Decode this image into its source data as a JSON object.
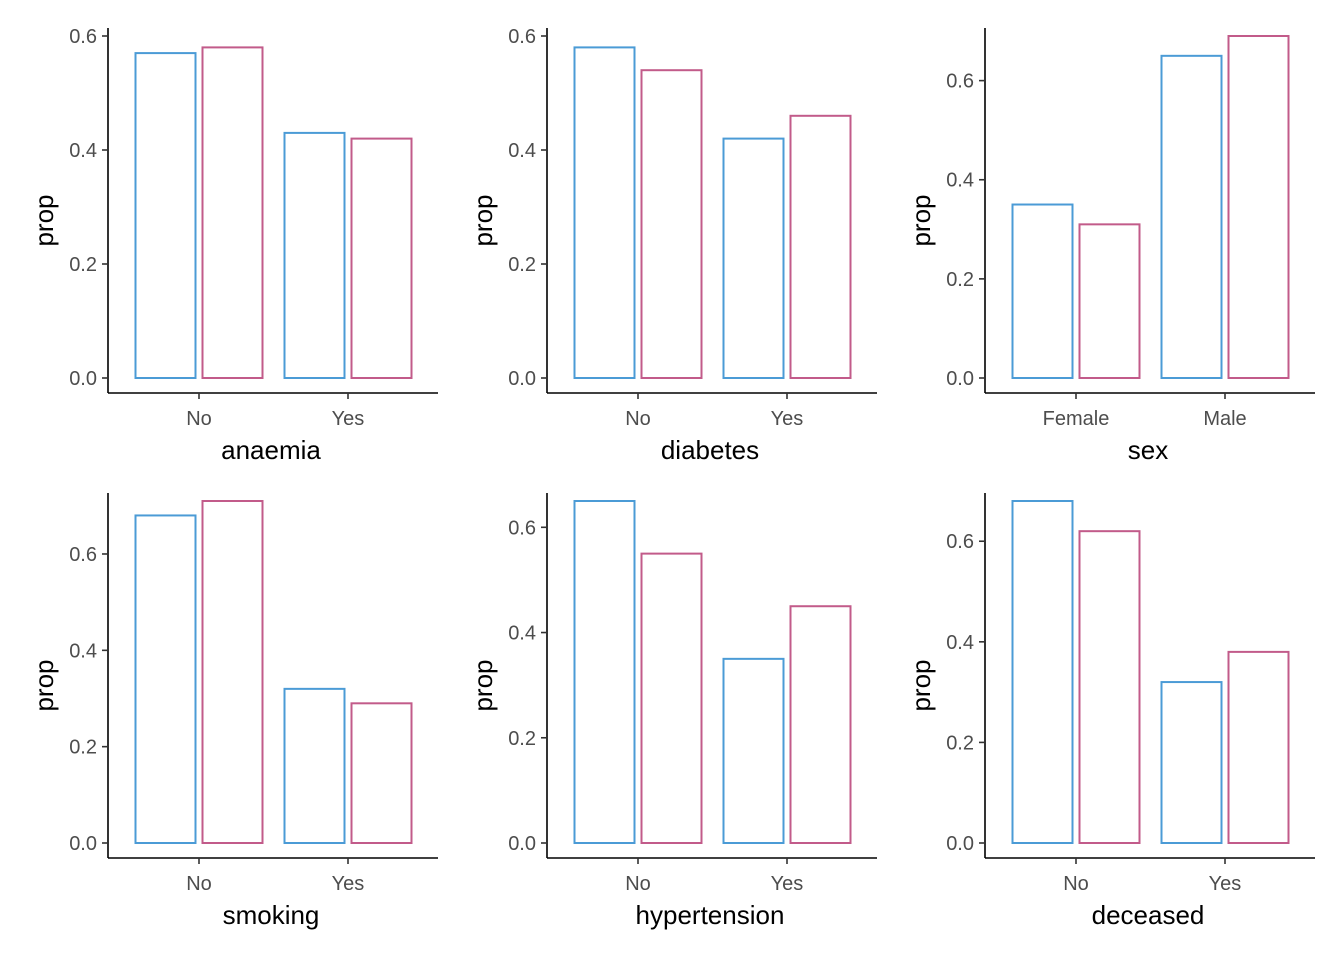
{
  "colors": {
    "series_1": "#4b9bd6",
    "series_2": "#c25b8a"
  },
  "chart_data": [
    {
      "type": "bar",
      "xlabel": "anaemia",
      "ylabel": "prop",
      "categories": [
        "No",
        "Yes"
      ],
      "series": [
        {
          "values": [
            0.57,
            0.43
          ]
        },
        {
          "values": [
            0.58,
            0.42
          ]
        }
      ],
      "ylim": [
        0,
        0.6
      ],
      "yticks": [
        0.0,
        0.2,
        0.4,
        0.6
      ],
      "ytick_labels": [
        "0.0",
        "0.2",
        "0.4",
        "0.6"
      ],
      "grid": false,
      "legend": "none"
    },
    {
      "type": "bar",
      "xlabel": "diabetes",
      "ylabel": "prop",
      "categories": [
        "No",
        "Yes"
      ],
      "series": [
        {
          "values": [
            0.58,
            0.42
          ]
        },
        {
          "values": [
            0.54,
            0.46
          ]
        }
      ],
      "ylim": [
        0,
        0.6
      ],
      "yticks": [
        0.0,
        0.2,
        0.4,
        0.6
      ],
      "ytick_labels": [
        "0.0",
        "0.2",
        "0.4",
        "0.6"
      ],
      "grid": false,
      "legend": "none"
    },
    {
      "type": "bar",
      "xlabel": "sex",
      "ylabel": "prop",
      "categories": [
        "Female",
        "Male"
      ],
      "series": [
        {
          "values": [
            0.35,
            0.65
          ]
        },
        {
          "values": [
            0.31,
            0.69
          ]
        }
      ],
      "ylim": [
        0,
        0.69
      ],
      "yticks": [
        0.0,
        0.2,
        0.4,
        0.6
      ],
      "ytick_labels": [
        "0.0",
        "0.2",
        "0.4",
        "0.6"
      ],
      "grid": false,
      "legend": "none"
    },
    {
      "type": "bar",
      "xlabel": "smoking",
      "ylabel": "prop",
      "categories": [
        "No",
        "Yes"
      ],
      "series": [
        {
          "values": [
            0.68,
            0.32
          ]
        },
        {
          "values": [
            0.71,
            0.29
          ]
        }
      ],
      "ylim": [
        0,
        0.71
      ],
      "yticks": [
        0.0,
        0.2,
        0.4,
        0.6
      ],
      "ytick_labels": [
        "0.0",
        "0.2",
        "0.4",
        "0.6"
      ],
      "grid": false,
      "legend": "none"
    },
    {
      "type": "bar",
      "xlabel": "hypertension",
      "ylabel": "prop",
      "categories": [
        "No",
        "Yes"
      ],
      "series": [
        {
          "values": [
            0.65,
            0.35
          ]
        },
        {
          "values": [
            0.55,
            0.45
          ]
        }
      ],
      "ylim": [
        0,
        0.65
      ],
      "yticks": [
        0.0,
        0.2,
        0.4,
        0.6
      ],
      "ytick_labels": [
        "0.0",
        "0.2",
        "0.4",
        "0.6"
      ],
      "grid": false,
      "legend": "none"
    },
    {
      "type": "bar",
      "xlabel": "deceased",
      "ylabel": "prop",
      "categories": [
        "No",
        "Yes"
      ],
      "series": [
        {
          "values": [
            0.68,
            0.32
          ]
        },
        {
          "values": [
            0.62,
            0.38
          ]
        }
      ],
      "ylim": [
        0,
        0.68
      ],
      "yticks": [
        0.0,
        0.2,
        0.4,
        0.6
      ],
      "ytick_labels": [
        "0.0",
        "0.2",
        "0.4",
        "0.6"
      ],
      "grid": false,
      "legend": "none"
    }
  ]
}
